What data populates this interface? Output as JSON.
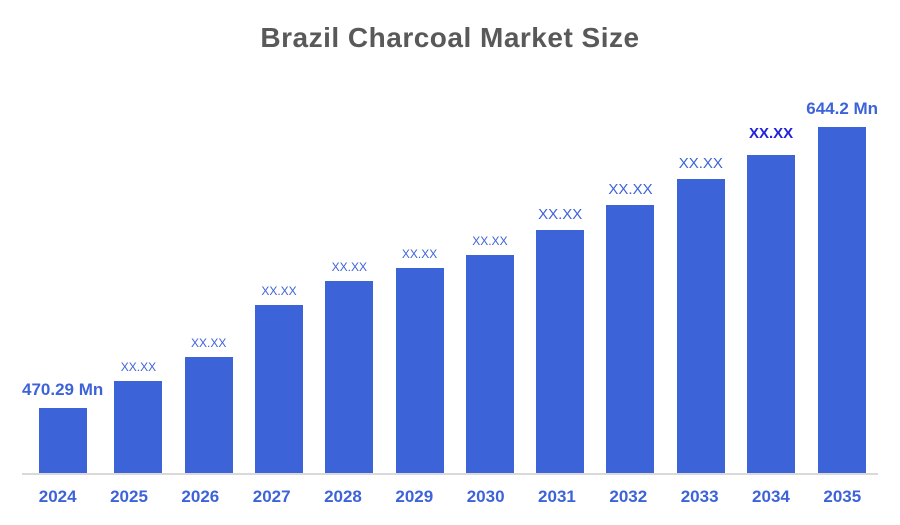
{
  "title": "Brazil Charcoal Market Size",
  "colors": {
    "bar": "#3D63D9",
    "label": "#3D63D9",
    "highlight_label": "#2222DD",
    "title": "#595959",
    "axis_line": "#D9D9D9"
  },
  "chart_data": {
    "type": "bar",
    "title": "Brazil Charcoal Market Size",
    "categories": [
      "2024",
      "2025",
      "2026",
      "2027",
      "2028",
      "2029",
      "2030",
      "2031",
      "2032",
      "2033",
      "2034",
      "2035"
    ],
    "values": [
      470.29,
      487,
      502,
      534,
      549,
      557,
      565,
      580,
      596,
      612,
      627,
      644.2
    ],
    "values_estimated": "Only 2024 (470.29 Mn) and 2035 (644.2 Mn) are shown numerically; intermediate bars are masked as XX.XX and their values are estimated from bar heights",
    "bar_labels": [
      "470.29 Mn",
      "XX.XX",
      "XX.XX",
      "XX.XX",
      "XX.XX",
      "XX.XX",
      "XX.XX",
      "XX.XX",
      "XX.XX",
      "XX.XX",
      "XX.XX",
      "644.2 Mn"
    ],
    "label_styles": [
      "endpoint",
      "small",
      "small",
      "small",
      "small",
      "small",
      "small",
      "medium",
      "medium",
      "medium",
      "highlight",
      "endpoint"
    ],
    "unit": "Mn",
    "xlabel": "",
    "ylabel": "",
    "ylim": [
      430,
      670
    ],
    "grid": false,
    "legend": false
  }
}
